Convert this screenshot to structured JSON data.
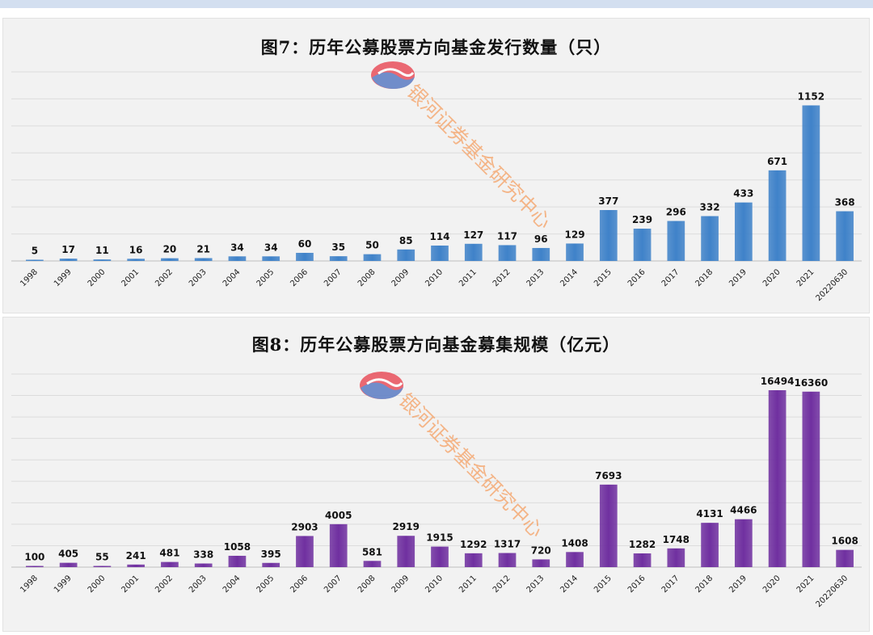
{
  "watermark": {
    "text": "银河证券基金研究中心",
    "color": "#f4a46a",
    "logo_colors": [
      "#e9505c",
      "#5b7cc4"
    ]
  },
  "chart_data": [
    {
      "type": "bar",
      "title": "图7：历年公募股票方向基金发行数量（只）",
      "color": "#3f82c9",
      "categories": [
        "1998",
        "1999",
        "2000",
        "2001",
        "2002",
        "2003",
        "2004",
        "2005",
        "2006",
        "2007",
        "2008",
        "2009",
        "2010",
        "2011",
        "2012",
        "2013",
        "2014",
        "2015",
        "2016",
        "2017",
        "2018",
        "2019",
        "2020",
        "2021",
        "20220630"
      ],
      "values": [
        5,
        17,
        11,
        16,
        20,
        21,
        34,
        34,
        60,
        35,
        50,
        85,
        114,
        127,
        117,
        96,
        129,
        377,
        239,
        296,
        332,
        433,
        671,
        1152,
        368
      ],
      "ylim": [
        0,
        1400
      ],
      "grid": true
    },
    {
      "type": "bar",
      "title": "图8：历年公募股票方向基金募集规模（亿元）",
      "color": "#7030a0",
      "categories": [
        "1998",
        "1999",
        "2000",
        "2001",
        "2002",
        "2003",
        "2004",
        "2005",
        "2006",
        "2007",
        "2008",
        "2009",
        "2010",
        "2011",
        "2012",
        "2013",
        "2014",
        "2015",
        "2016",
        "2017",
        "2018",
        "2019",
        "2020",
        "2021",
        "20220630"
      ],
      "values": [
        100,
        405,
        55,
        241,
        481,
        338,
        1058,
        395,
        2903,
        4005,
        581,
        2919,
        1915,
        1292,
        1317,
        720,
        1408,
        7693,
        1282,
        1748,
        4131,
        4466,
        16494,
        16360,
        1608
      ],
      "ylim": [
        0,
        18000
      ],
      "grid": true
    }
  ]
}
